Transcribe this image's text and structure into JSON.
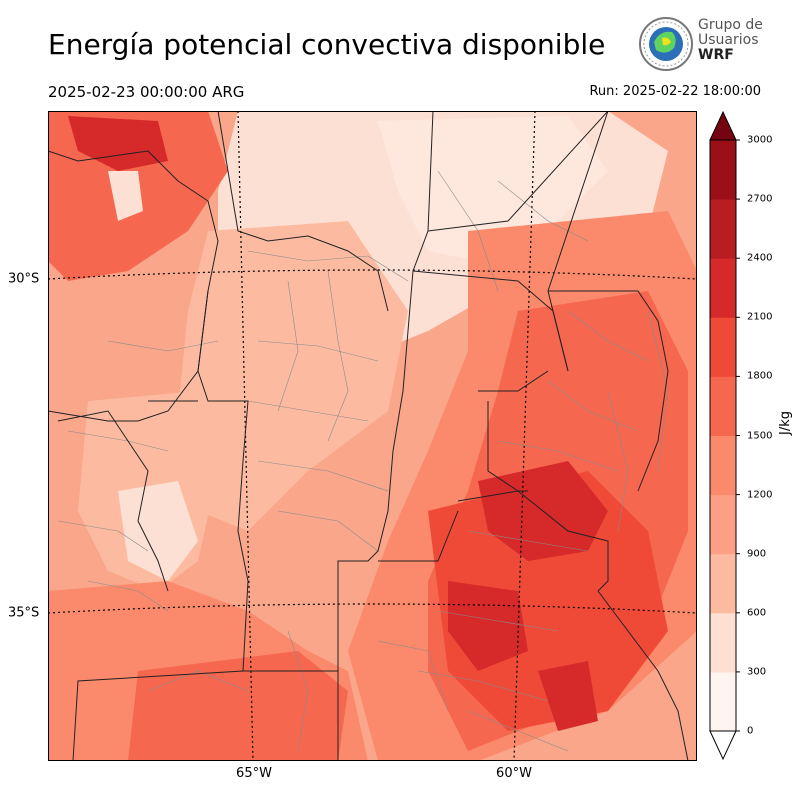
{
  "header": {
    "title": "Energía potencial convectiva disponible",
    "valid_time": "2025-02-23 00:00:00 ARG",
    "run_time": "Run: 2025-02-22 18:00:00"
  },
  "logo": {
    "line1": "Grupo de",
    "line2": "Usuarios",
    "line3": "WRF"
  },
  "map": {
    "lat_labels": [
      "30°S",
      "35°S"
    ],
    "lon_labels": [
      "65°W",
      "60°W"
    ],
    "field": "CAPE",
    "colors": {
      "land_low": "#fde0d4",
      "land_mid": "#f9a68a",
      "land_high": "#ef4f3a",
      "border": "#222222",
      "subdivision": "#8a8a8a"
    }
  },
  "colorbar": {
    "label": "J/kg",
    "ticks": [
      "0",
      "300",
      "600",
      "900",
      "1200",
      "1500",
      "1800",
      "2100",
      "2400",
      "2700",
      "3000"
    ],
    "colors": [
      "#fff5f0",
      "#fee0d2",
      "#fcbba1",
      "#fc9f85",
      "#fb8a6c",
      "#f6674f",
      "#ef4a37",
      "#d6292a",
      "#b81d22",
      "#9a0f18",
      "#740510"
    ]
  }
}
